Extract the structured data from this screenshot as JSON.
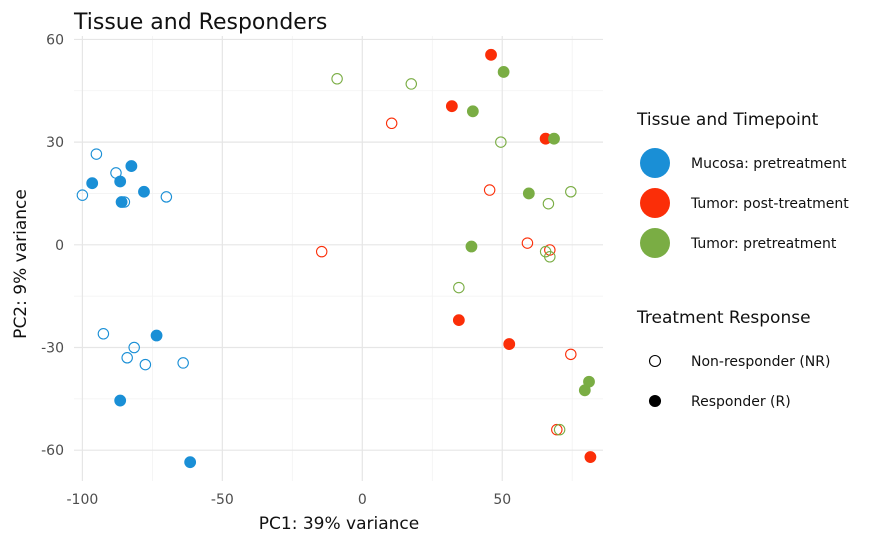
{
  "chart_data": {
    "type": "scatter",
    "title": "Tissue and Responders",
    "xlabel": "PC1: 39% variance",
    "ylabel": "PC2: 9% variance",
    "xlim": [
      -103,
      86
    ],
    "ylim": [
      -69,
      61
    ],
    "xticks": [
      -100,
      -50,
      0,
      50
    ],
    "yticks": [
      -60,
      -30,
      0,
      30,
      60
    ],
    "grid": true,
    "color_legend": {
      "title": "Tissue and Timepoint",
      "entries": [
        {
          "name": "Mucosa: pretreatment",
          "color": "#1a8fd6"
        },
        {
          "name": "Tumor: post-treatment",
          "color": "#fb2e08"
        },
        {
          "name": "Tumor: pretreatment",
          "color": "#7aad44"
        }
      ]
    },
    "shape_legend": {
      "title": "Treatment Response",
      "entries": [
        {
          "name": "Non-responder (NR)",
          "filled": false
        },
        {
          "name": "Responder (R)",
          "filled": true
        }
      ]
    },
    "points": [
      {
        "x": -95,
        "y": 26.5,
        "group": 0,
        "filled": false
      },
      {
        "x": -88,
        "y": 21,
        "group": 0,
        "filled": false
      },
      {
        "x": -82.5,
        "y": 23,
        "group": 0,
        "filled": true
      },
      {
        "x": -96.5,
        "y": 18,
        "group": 0,
        "filled": true
      },
      {
        "x": -86.5,
        "y": 18.5,
        "group": 0,
        "filled": true
      },
      {
        "x": -78,
        "y": 15.5,
        "group": 0,
        "filled": true
      },
      {
        "x": -100,
        "y": 14.5,
        "group": 0,
        "filled": false
      },
      {
        "x": -70,
        "y": 14,
        "group": 0,
        "filled": false
      },
      {
        "x": -85,
        "y": 12.5,
        "group": 0,
        "filled": false
      },
      {
        "x": -86,
        "y": 12.5,
        "group": 0,
        "filled": true
      },
      {
        "x": -92.5,
        "y": -26,
        "group": 0,
        "filled": false
      },
      {
        "x": -73.5,
        "y": -26.5,
        "group": 0,
        "filled": true
      },
      {
        "x": -81.5,
        "y": -30,
        "group": 0,
        "filled": false
      },
      {
        "x": -84,
        "y": -33,
        "group": 0,
        "filled": false
      },
      {
        "x": -77.5,
        "y": -35,
        "group": 0,
        "filled": false
      },
      {
        "x": -64,
        "y": -34.5,
        "group": 0,
        "filled": false
      },
      {
        "x": -86.5,
        "y": -45.5,
        "group": 0,
        "filled": true
      },
      {
        "x": -61.5,
        "y": -63.5,
        "group": 0,
        "filled": true
      },
      {
        "x": 46,
        "y": 55.5,
        "group": 1,
        "filled": true
      },
      {
        "x": 32,
        "y": 40.5,
        "group": 1,
        "filled": true
      },
      {
        "x": 10.5,
        "y": 35.5,
        "group": 1,
        "filled": false
      },
      {
        "x": 65.5,
        "y": 31,
        "group": 1,
        "filled": true
      },
      {
        "x": 45.5,
        "y": 16,
        "group": 1,
        "filled": false
      },
      {
        "x": 59,
        "y": 0.5,
        "group": 1,
        "filled": false
      },
      {
        "x": 67,
        "y": -1.5,
        "group": 1,
        "filled": false
      },
      {
        "x": -14.5,
        "y": -2,
        "group": 1,
        "filled": false
      },
      {
        "x": 34.5,
        "y": -22,
        "group": 1,
        "filled": true
      },
      {
        "x": 52.5,
        "y": -29,
        "group": 1,
        "filled": true
      },
      {
        "x": 74.5,
        "y": -32,
        "group": 1,
        "filled": false
      },
      {
        "x": 69.5,
        "y": -54,
        "group": 1,
        "filled": false
      },
      {
        "x": 81.5,
        "y": -62,
        "group": 1,
        "filled": true
      },
      {
        "x": -9,
        "y": 48.5,
        "group": 2,
        "filled": false
      },
      {
        "x": 50.5,
        "y": 50.5,
        "group": 2,
        "filled": true
      },
      {
        "x": 17.5,
        "y": 47,
        "group": 2,
        "filled": false
      },
      {
        "x": 39.5,
        "y": 39,
        "group": 2,
        "filled": true
      },
      {
        "x": 49.5,
        "y": 30,
        "group": 2,
        "filled": false
      },
      {
        "x": 68.5,
        "y": 31,
        "group": 2,
        "filled": true
      },
      {
        "x": 59.5,
        "y": 15,
        "group": 2,
        "filled": true
      },
      {
        "x": 74.5,
        "y": 15.5,
        "group": 2,
        "filled": false
      },
      {
        "x": 66.5,
        "y": 12,
        "group": 2,
        "filled": false
      },
      {
        "x": 39,
        "y": -0.5,
        "group": 2,
        "filled": true
      },
      {
        "x": 65.5,
        "y": -2,
        "group": 2,
        "filled": false
      },
      {
        "x": 67,
        "y": -3.5,
        "group": 2,
        "filled": false
      },
      {
        "x": 34.5,
        "y": -12.5,
        "group": 2,
        "filled": false
      },
      {
        "x": 81,
        "y": -40,
        "group": 2,
        "filled": true
      },
      {
        "x": 79.5,
        "y": -42.5,
        "group": 2,
        "filled": true
      },
      {
        "x": 70.5,
        "y": -54,
        "group": 2,
        "filled": false
      }
    ]
  }
}
